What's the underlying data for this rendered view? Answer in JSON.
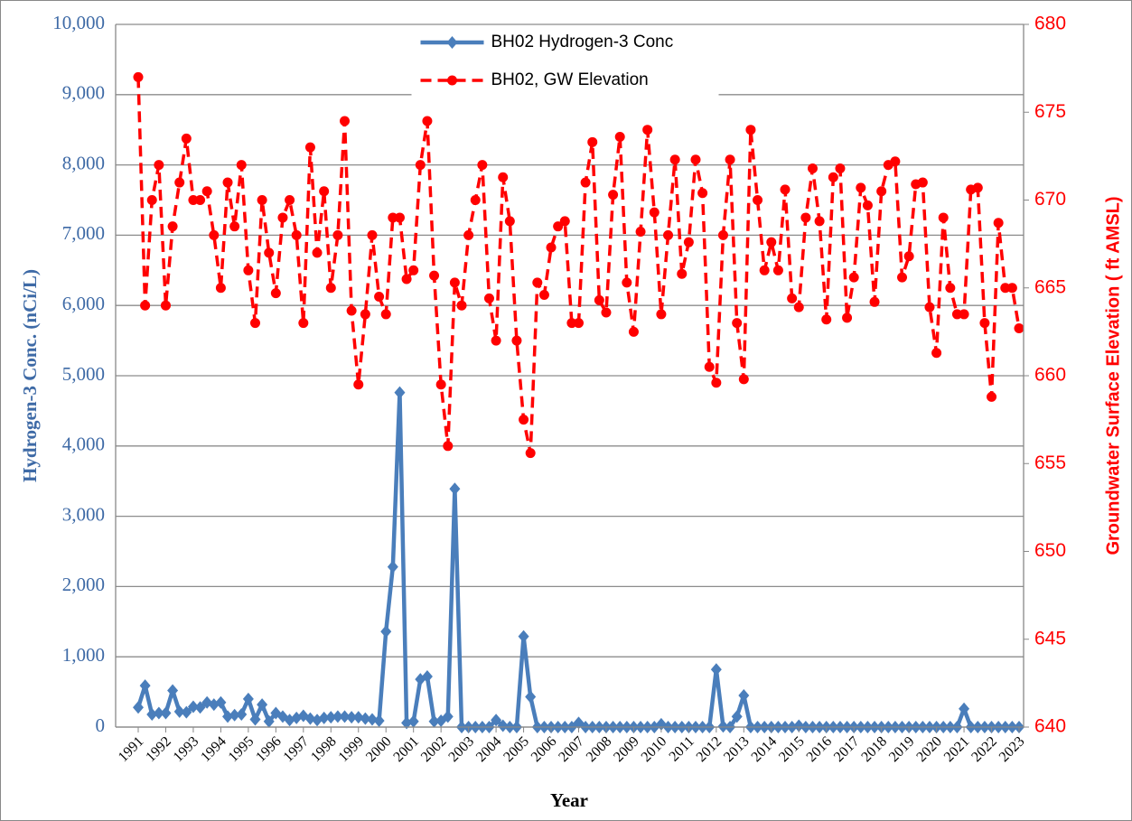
{
  "chart_data": {
    "type": "line",
    "x_label": "Year",
    "y_label": "Hydrogen-3 Conc. (nCi/L)",
    "y2_label": "Groundwater Surface Elevation ( ft AMSL)",
    "legend": "upper center",
    "grid": true,
    "categories": [
      "1991",
      null,
      null,
      null,
      "1992",
      null,
      null,
      null,
      "1993",
      null,
      null,
      null,
      "1994",
      null,
      null,
      null,
      "1995",
      null,
      null,
      null,
      "1996",
      null,
      null,
      null,
      "1997",
      null,
      null,
      null,
      "1998",
      null,
      null,
      null,
      "1999",
      null,
      null,
      null,
      "2000",
      null,
      null,
      null,
      "2001",
      null,
      null,
      null,
      "2002",
      null,
      null,
      null,
      "2003",
      null,
      null,
      null,
      "2004",
      null,
      null,
      null,
      "2005",
      null,
      null,
      null,
      "2006",
      null,
      null,
      null,
      "2007",
      null,
      null,
      null,
      "2008",
      null,
      null,
      null,
      "2009",
      null,
      null,
      null,
      "2010",
      null,
      null,
      null,
      "2011",
      null,
      null,
      null,
      "2012",
      null,
      null,
      null,
      "2013",
      null,
      null,
      null,
      "2014",
      null,
      null,
      null,
      "2015",
      null,
      null,
      null,
      "2016",
      null,
      null,
      null,
      "2017",
      null,
      null,
      null,
      "2018",
      null,
      null,
      null,
      "2019",
      null,
      null,
      null,
      "2020",
      null,
      null,
      null,
      "2021",
      null,
      null,
      null,
      "2022",
      null,
      null,
      null,
      "2023"
    ],
    "ylim": [
      0,
      10000
    ],
    "yticks": [
      0,
      {
        "value": 1000,
        "label": "1,000"
      },
      {
        "value": 2000,
        "label": "2,000"
      },
      {
        "value": 3000,
        "label": "3,000"
      },
      {
        "value": 4000,
        "label": "4,000"
      },
      {
        "value": 5000,
        "label": "5,000"
      },
      {
        "value": 6000,
        "label": "6,000"
      },
      {
        "value": 7000,
        "label": "7,000"
      },
      {
        "value": 8000,
        "label": "8,000"
      },
      {
        "value": 9000,
        "label": "9,000"
      },
      {
        "value": 10000,
        "label": "10,000"
      }
    ],
    "y2lim": [
      640,
      680
    ],
    "y2ticks": [
      640,
      645,
      650,
      655,
      660,
      665,
      670,
      675,
      680
    ],
    "series": [
      {
        "name": "BH02 Hydrogen-3 Conc",
        "color": "#4a7ebb",
        "marker": "diamond",
        "dashed": false,
        "values": [
          280,
          590,
          180,
          200,
          200,
          520,
          220,
          210,
          290,
          280,
          350,
          320,
          350,
          150,
          170,
          180,
          400,
          110,
          320,
          80,
          200,
          150,
          100,
          130,
          160,
          120,
          100,
          130,
          140,
          150,
          150,
          140,
          140,
          120,
          110,
          90,
          1360,
          2280,
          4760,
          60,
          80,
          680,
          720,
          80,
          90,
          150,
          3390,
          0,
          0,
          0,
          0,
          0,
          100,
          20,
          0,
          0,
          1290,
          430,
          0,
          0,
          0,
          0,
          0,
          0,
          60,
          0,
          0,
          0,
          0,
          0,
          0,
          0,
          0,
          0,
          0,
          0,
          40,
          0,
          0,
          0,
          0,
          0,
          0,
          0,
          820,
          10,
          0,
          150,
          450,
          0,
          0,
          0,
          0,
          0,
          0,
          0,
          20,
          0,
          0,
          0,
          0,
          0,
          0,
          0,
          0,
          0,
          0,
          0,
          0,
          0,
          0,
          0,
          0,
          0,
          0,
          0,
          0,
          0,
          0,
          0,
          260,
          0,
          0,
          0,
          0,
          0,
          0,
          0,
          0
        ]
      },
      {
        "name": "BH02, GW Elevation",
        "color": "#ff0000",
        "marker": "circle",
        "dashed": true,
        "axis": "y2",
        "values": [
          677,
          664,
          670,
          672,
          664,
          668.5,
          671,
          673.5,
          670,
          670,
          670.5,
          668,
          665,
          671,
          668.5,
          672,
          666,
          663,
          670,
          667,
          664.7,
          669,
          670,
          668,
          663,
          673,
          667,
          670.5,
          665,
          668,
          674.5,
          663.7,
          659.5,
          663.5,
          668,
          664.5,
          663.5,
          669,
          669,
          665.5,
          666,
          672,
          674.5,
          665.7,
          659.5,
          656,
          665.3,
          664,
          668,
          670,
          672,
          664.4,
          662,
          671.3,
          668.8,
          662,
          657.5,
          655.6,
          665.3,
          664.6,
          667.3,
          668.5,
          668.8,
          663,
          663,
          671,
          673.3,
          664.3,
          663.6,
          670.3,
          673.6,
          665.3,
          662.5,
          668.2,
          674,
          669.3,
          663.5,
          668,
          672.3,
          665.8,
          667.6,
          672.3,
          670.4,
          660.5,
          659.6,
          668,
          672.3,
          663,
          659.8,
          674,
          670,
          666,
          667.6,
          666,
          670.6,
          664.4,
          663.9,
          669,
          671.8,
          668.8,
          663.2,
          671.3,
          671.8,
          663.3,
          665.6,
          670.7,
          669.7,
          664.2,
          670.5,
          672,
          672.2,
          665.6,
          666.8,
          670.9,
          671,
          663.9,
          661.3,
          669,
          665,
          663.5,
          663.5,
          670.6,
          670.7,
          663,
          658.8,
          668.7,
          665,
          665,
          662.7
        ]
      }
    ]
  }
}
